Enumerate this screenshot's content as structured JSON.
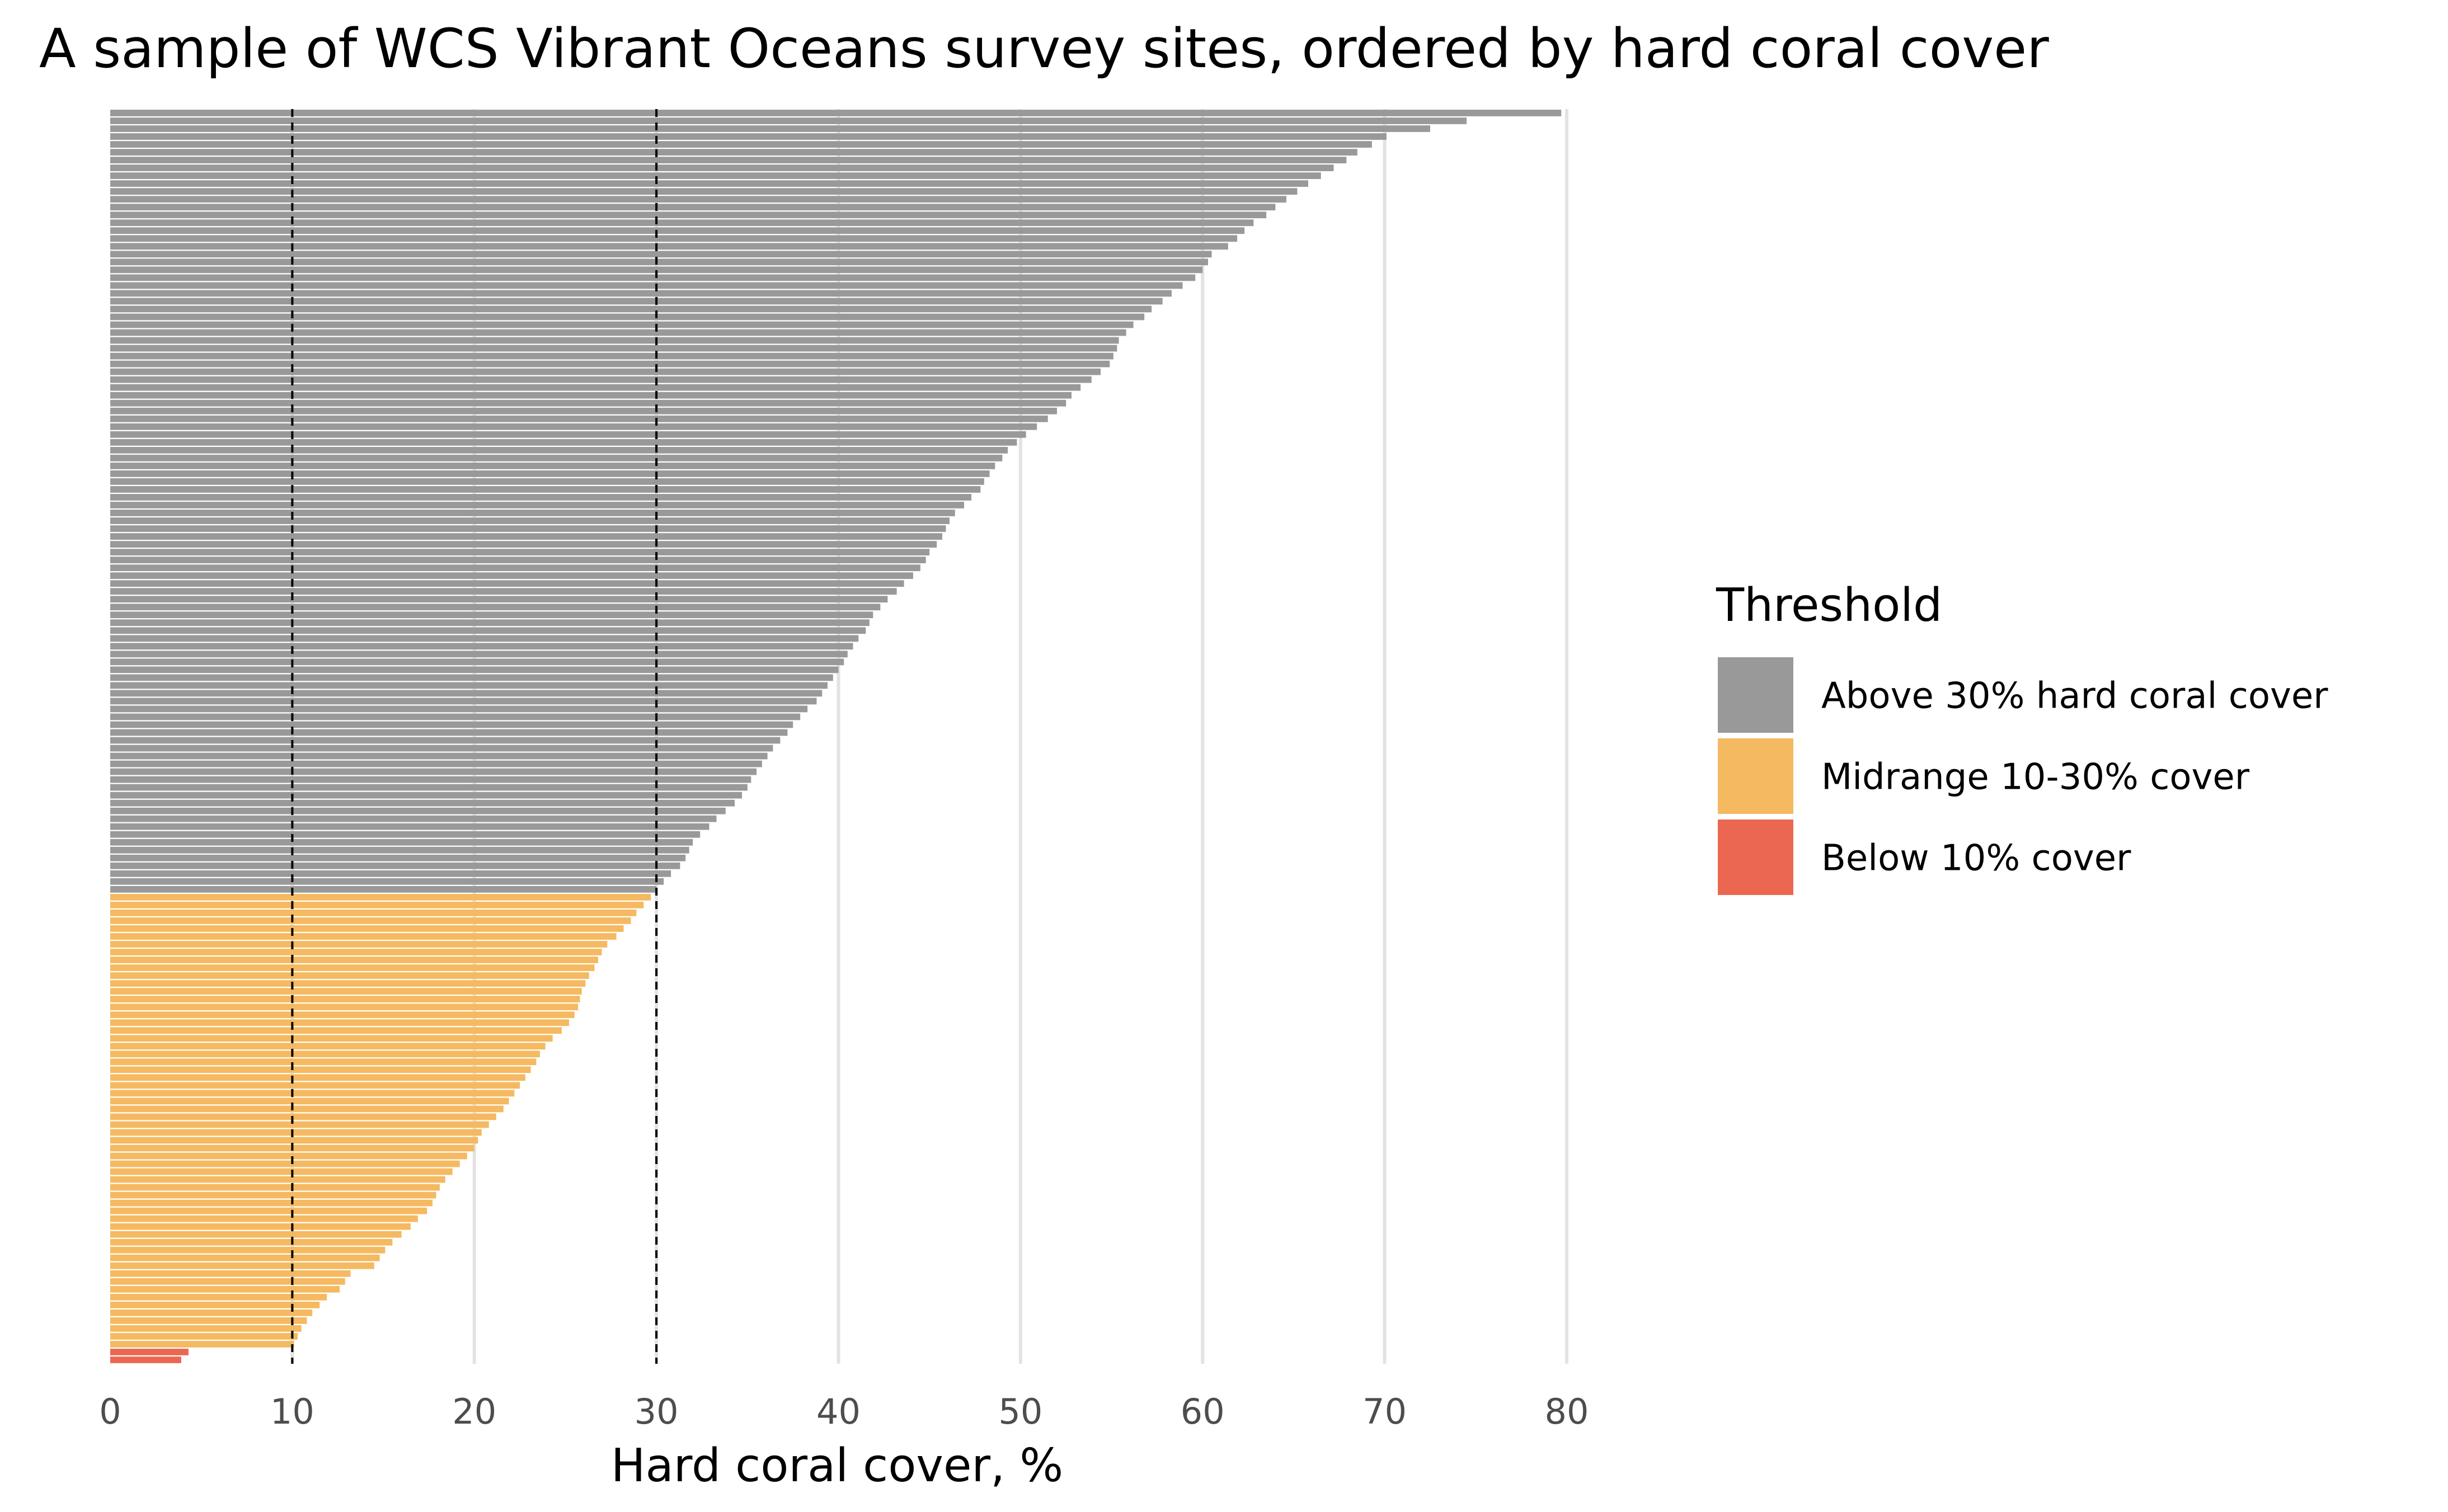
{
  "chart_data": {
    "type": "bar",
    "orientation": "horizontal",
    "title": "A sample of WCS Vibrant Oceans survey sites, ordered by hard coral cover",
    "xlabel": "Hard coral cover, %",
    "ylabel": "",
    "xlim": [
      0,
      80
    ],
    "xticks": [
      "0",
      "10",
      "20",
      "30",
      "40",
      "50",
      "60",
      "70",
      "80"
    ],
    "grid": "vertical major gridlines",
    "reference_lines": [
      10,
      30
    ],
    "legend": {
      "title": "Threshold",
      "position": "right",
      "items": [
        {
          "label": "Above 30% hard coral cover",
          "color": "#999999"
        },
        {
          "label": "Midrange 10-30% cover",
          "color": "#f5b961"
        },
        {
          "label": "Below 10% cover",
          "color": "#ec6752"
        }
      ]
    },
    "thresholds": {
      "above": 30,
      "below": 10
    },
    "values": [
      79.7,
      74.5,
      72.5,
      70.1,
      69.3,
      68.5,
      67.9,
      67.2,
      66.5,
      65.8,
      65.2,
      64.6,
      64.0,
      63.5,
      62.8,
      62.3,
      61.9,
      61.4,
      60.5,
      60.3,
      60.0,
      59.6,
      58.9,
      58.3,
      57.8,
      57.2,
      56.8,
      56.2,
      55.8,
      55.4,
      55.3,
      55.1,
      54.9,
      54.4,
      53.9,
      53.3,
      52.8,
      52.5,
      52.0,
      51.5,
      50.9,
      50.3,
      49.8,
      49.3,
      49.0,
      48.6,
      48.3,
      48.0,
      47.8,
      47.3,
      46.9,
      46.4,
      46.1,
      45.9,
      45.7,
      45.4,
      45.0,
      44.8,
      44.5,
      44.1,
      43.6,
      43.2,
      42.7,
      42.3,
      41.9,
      41.7,
      41.5,
      41.1,
      40.8,
      40.5,
      40.3,
      40.0,
      39.7,
      39.4,
      39.1,
      38.8,
      38.3,
      37.9,
      37.5,
      37.2,
      36.8,
      36.4,
      36.1,
      35.8,
      35.5,
      35.2,
      35.0,
      34.7,
      34.3,
      33.8,
      33.3,
      32.9,
      32.4,
      32.0,
      31.8,
      31.6,
      31.3,
      30.8,
      30.4,
      30.0,
      29.7,
      29.3,
      28.9,
      28.6,
      28.2,
      27.8,
      27.3,
      27.0,
      26.8,
      26.6,
      26.3,
      26.1,
      25.9,
      25.8,
      25.7,
      25.5,
      25.2,
      24.8,
      24.3,
      23.9,
      23.6,
      23.4,
      23.1,
      22.8,
      22.5,
      22.2,
      21.9,
      21.6,
      21.2,
      20.8,
      20.4,
      20.2,
      20.0,
      19.6,
      19.2,
      18.8,
      18.4,
      18.1,
      17.9,
      17.7,
      17.4,
      16.9,
      16.5,
      16.0,
      15.5,
      15.1,
      14.8,
      14.5,
      13.2,
      12.9,
      12.6,
      11.9,
      11.5,
      11.1,
      10.8,
      10.5,
      10.3,
      10.1,
      4.3,
      3.9
    ]
  }
}
